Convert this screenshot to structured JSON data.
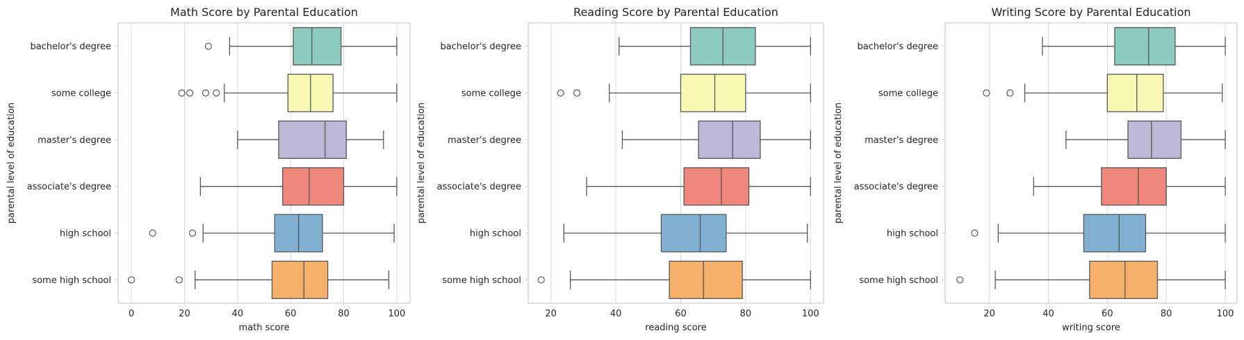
{
  "chart_data": [
    {
      "type": "box",
      "orientation": "horizontal",
      "title": "Math Score by Parental Education",
      "xlabel": "math score",
      "ylabel": "parental level of education",
      "xlim": [
        -5,
        105
      ],
      "xticks": [
        0,
        20,
        40,
        60,
        80,
        100
      ],
      "grid": "vertical",
      "categories": [
        "bachelor's degree",
        "some college",
        "master's degree",
        "associate's degree",
        "high school",
        "some high school"
      ],
      "boxes": [
        {
          "category": "bachelor's degree",
          "whisker_low": 37,
          "q1": 61,
          "median": 68,
          "q3": 79,
          "whisker_high": 100,
          "outliers": [
            29
          ]
        },
        {
          "category": "some college",
          "whisker_low": 35,
          "q1": 59,
          "median": 67.5,
          "q3": 76,
          "whisker_high": 100,
          "outliers": [
            19,
            22,
            28,
            32
          ]
        },
        {
          "category": "master's degree",
          "whisker_low": 40,
          "q1": 55.5,
          "median": 73,
          "q3": 81,
          "whisker_high": 95,
          "outliers": []
        },
        {
          "category": "associate's degree",
          "whisker_low": 26,
          "q1": 57,
          "median": 67,
          "q3": 80,
          "whisker_high": 100,
          "outliers": []
        },
        {
          "category": "high school",
          "whisker_low": 27,
          "q1": 54,
          "median": 63,
          "q3": 72,
          "whisker_high": 99,
          "outliers": [
            8,
            23
          ]
        },
        {
          "category": "some high school",
          "whisker_low": 24,
          "q1": 53,
          "median": 65,
          "q3": 74,
          "whisker_high": 97,
          "outliers": [
            0,
            18
          ]
        }
      ]
    },
    {
      "type": "box",
      "orientation": "horizontal",
      "title": "Reading Score by Parental Education",
      "xlabel": "reading score",
      "ylabel": "parental level of education",
      "xlim": [
        13,
        104
      ],
      "xticks": [
        20,
        40,
        60,
        80,
        100
      ],
      "grid": "vertical",
      "categories": [
        "bachelor's degree",
        "some college",
        "master's degree",
        "associate's degree",
        "high school",
        "some high school"
      ],
      "boxes": [
        {
          "category": "bachelor's degree",
          "whisker_low": 41,
          "q1": 63,
          "median": 73,
          "q3": 83,
          "whisker_high": 100,
          "outliers": []
        },
        {
          "category": "some college",
          "whisker_low": 38,
          "q1": 60,
          "median": 70.5,
          "q3": 80,
          "whisker_high": 100,
          "outliers": [
            23,
            28
          ]
        },
        {
          "category": "master's degree",
          "whisker_low": 42,
          "q1": 65.5,
          "median": 76,
          "q3": 84.5,
          "whisker_high": 100,
          "outliers": []
        },
        {
          "category": "associate's degree",
          "whisker_low": 31,
          "q1": 61,
          "median": 72.5,
          "q3": 81,
          "whisker_high": 100,
          "outliers": []
        },
        {
          "category": "high school",
          "whisker_low": 24,
          "q1": 54,
          "median": 66,
          "q3": 74,
          "whisker_high": 99,
          "outliers": []
        },
        {
          "category": "some high school",
          "whisker_low": 26,
          "q1": 56.5,
          "median": 67,
          "q3": 79,
          "whisker_high": 100,
          "outliers": [
            17
          ]
        }
      ]
    },
    {
      "type": "box",
      "orientation": "horizontal",
      "title": "Writing Score by Parental Education",
      "xlabel": "writing score",
      "ylabel": "parental level of education",
      "xlim": [
        5,
        104
      ],
      "xticks": [
        20,
        40,
        60,
        80,
        100
      ],
      "grid": "vertical",
      "categories": [
        "bachelor's degree",
        "some college",
        "master's degree",
        "associate's degree",
        "high school",
        "some high school"
      ],
      "boxes": [
        {
          "category": "bachelor's degree",
          "whisker_low": 38,
          "q1": 62.5,
          "median": 74,
          "q3": 83,
          "whisker_high": 100,
          "outliers": []
        },
        {
          "category": "some college",
          "whisker_low": 32,
          "q1": 60,
          "median": 70,
          "q3": 79,
          "whisker_high": 99,
          "outliers": [
            19,
            27
          ]
        },
        {
          "category": "master's degree",
          "whisker_low": 46,
          "q1": 67,
          "median": 75,
          "q3": 85,
          "whisker_high": 100,
          "outliers": []
        },
        {
          "category": "associate's degree",
          "whisker_low": 35,
          "q1": 58,
          "median": 70.5,
          "q3": 80,
          "whisker_high": 100,
          "outliers": []
        },
        {
          "category": "high school",
          "whisker_low": 23,
          "q1": 52,
          "median": 64,
          "q3": 73,
          "whisker_high": 100,
          "outliers": [
            15
          ]
        },
        {
          "category": "some high school",
          "whisker_low": 22,
          "q1": 54,
          "median": 66,
          "q3": 77,
          "whisker_high": 100,
          "outliers": [
            10
          ]
        }
      ]
    }
  ],
  "colors": {
    "boxes": [
      "#8dcbbe",
      "#f8f8b5",
      "#bdb8d8",
      "#f0877c",
      "#82b0d2",
      "#f5b06a"
    ],
    "grid": "#d9d9d9",
    "frame": "#cccccc",
    "lines": "#555555"
  }
}
